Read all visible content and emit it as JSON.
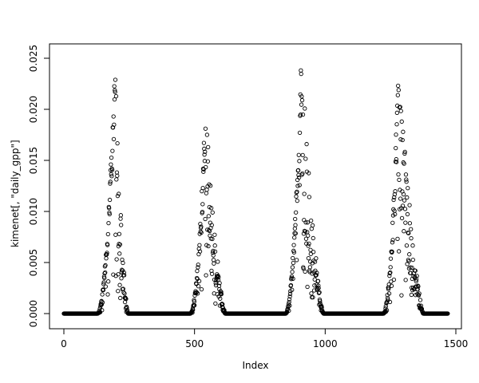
{
  "figure": {
    "background": "#ffffff",
    "point_color": "#000000",
    "axis_color": "#000000"
  },
  "chart_data": {
    "type": "scatter",
    "title": "",
    "xlabel": "Index",
    "ylabel": "kimenet[, \"daily_gpp\"]",
    "marker": "open-circle",
    "xlim": [
      -60,
      1520
    ],
    "ylim": [
      0,
      0.0264
    ],
    "xticks": [
      0,
      500,
      1000,
      1500
    ],
    "xtick_labels": [
      "0",
      "500",
      "1000",
      "1500"
    ],
    "yticks": [
      0,
      0.005,
      0.01,
      0.015,
      0.02,
      0.025
    ],
    "ytick_labels": [
      "0.000",
      "0.005",
      "0.010",
      "0.015",
      "0.020",
      "0.025"
    ],
    "grid": false,
    "legend": false,
    "n_points": 1470,
    "seed": 42,
    "zero_segments": [
      [
        0,
        128
      ],
      [
        246,
        483
      ],
      [
        618,
        848
      ],
      [
        994,
        1222
      ],
      [
        1376,
        1470
      ]
    ],
    "seasons": [
      {
        "start": 128,
        "peak_x": 195,
        "end": 246,
        "peak_y": 0.0255,
        "rise_noise": 0.25,
        "fall_noise": 0.7
      },
      {
        "start": 483,
        "peak_x": 542,
        "end": 618,
        "peak_y": 0.0205,
        "rise_noise": 0.3,
        "fall_noise": 0.7
      },
      {
        "start": 848,
        "peak_x": 908,
        "end": 994,
        "peak_y": 0.0255,
        "rise_noise": 0.3,
        "fall_noise": 0.7
      },
      {
        "start": 1222,
        "peak_x": 1280,
        "end": 1376,
        "peak_y": 0.0245,
        "rise_noise": 0.28,
        "fall_noise": 0.65
      }
    ],
    "deep_drop_probability": 0.2
  }
}
